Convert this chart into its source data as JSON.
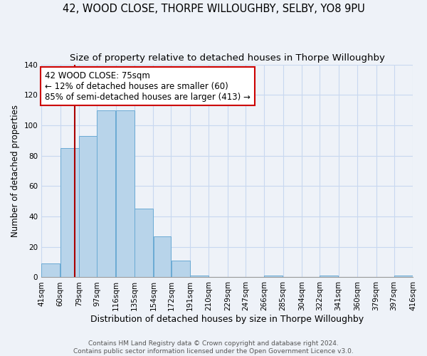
{
  "title": "42, WOOD CLOSE, THORPE WILLOUGHBY, SELBY, YO8 9PU",
  "subtitle": "Size of property relative to detached houses in Thorpe Willoughby",
  "xlabel": "Distribution of detached houses by size in Thorpe Willoughby",
  "ylabel": "Number of detached properties",
  "bar_edges": [
    41,
    60,
    79,
    97,
    116,
    135,
    154,
    172,
    191,
    210,
    229,
    247,
    266,
    285,
    304,
    322,
    341,
    360,
    379,
    397,
    416
  ],
  "bar_heights": [
    9,
    85,
    93,
    110,
    110,
    45,
    27,
    11,
    1,
    0,
    0,
    0,
    1,
    0,
    0,
    1,
    0,
    0,
    0,
    1
  ],
  "tick_labels": [
    "41sqm",
    "60sqm",
    "79sqm",
    "97sqm",
    "116sqm",
    "135sqm",
    "154sqm",
    "172sqm",
    "191sqm",
    "210sqm",
    "229sqm",
    "247sqm",
    "266sqm",
    "285sqm",
    "304sqm",
    "322sqm",
    "341sqm",
    "360sqm",
    "379sqm",
    "397sqm",
    "416sqm"
  ],
  "bar_color": "#b8d4ea",
  "bar_edge_color": "#6aaad4",
  "property_line_x": 75,
  "property_line_color": "#aa0000",
  "annotation_line1": "42 WOOD CLOSE: 75sqm",
  "annotation_line2": "← 12% of detached houses are smaller (60)",
  "annotation_line3": "85% of semi-detached houses are larger (413) →",
  "annotation_box_color": "#ffffff",
  "annotation_box_edge": "#cc0000",
  "ylim": [
    0,
    140
  ],
  "yticks": [
    0,
    20,
    40,
    60,
    80,
    100,
    120,
    140
  ],
  "footnote1": "Contains HM Land Registry data © Crown copyright and database right 2024.",
  "footnote2": "Contains public sector information licensed under the Open Government Licence v3.0.",
  "background_color": "#eef2f8",
  "grid_color": "#c8d8f0",
  "title_fontsize": 10.5,
  "subtitle_fontsize": 9.5,
  "xlabel_fontsize": 9,
  "ylabel_fontsize": 8.5,
  "annotation_fontsize": 8.5,
  "tick_fontsize": 7.5,
  "footnote_fontsize": 6.5
}
